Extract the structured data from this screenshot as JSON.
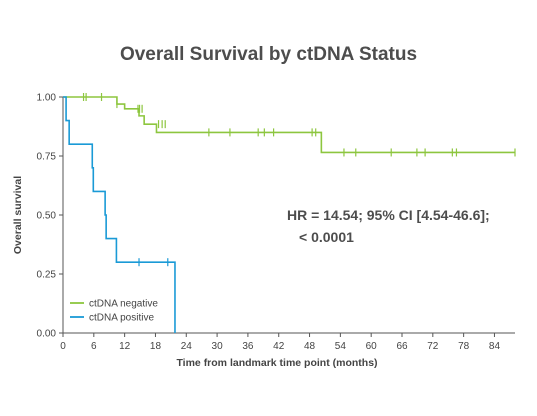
{
  "chart_data": {
    "type": "line",
    "step": true,
    "title": "Overall Survival by ctDNA Status",
    "xlabel": "Time from landmark time point (months)",
    "ylabel": "Overall survival",
    "xlim": [
      0,
      88
    ],
    "ylim": [
      0,
      1
    ],
    "xticks": [
      "0",
      "6",
      "12",
      "18",
      "24",
      "30",
      "36",
      "42",
      "48",
      "54",
      "60",
      "66",
      "72",
      "78",
      "84"
    ],
    "xtick_values": [
      0,
      6,
      12,
      18,
      24,
      30,
      36,
      42,
      48,
      54,
      60,
      66,
      72,
      78,
      84
    ],
    "yticks": [
      "0.00",
      "0.25",
      "0.50",
      "0.75",
      "1.00"
    ],
    "ytick_values": [
      0,
      0.25,
      0.5,
      0.75,
      1
    ],
    "legend_position": "bottom-left",
    "annotation": [
      "HR = 14.54; 95% CI [4.54-46.6];",
      "< 0.0001"
    ],
    "series": [
      {
        "name": "ctDNA negative",
        "color": "#8dc63f",
        "steps": [
          [
            0,
            1.0
          ],
          [
            10.5,
            0.97
          ],
          [
            12,
            0.95
          ],
          [
            14.8,
            0.92
          ],
          [
            15.8,
            0.885
          ],
          [
            18.2,
            0.85
          ],
          [
            50.3,
            0.765
          ],
          [
            88,
            0.765
          ]
        ],
        "censors": [
          [
            4,
            1.0
          ],
          [
            4.5,
            1.0
          ],
          [
            7.5,
            1.0
          ],
          [
            10.5,
            0.97
          ],
          [
            14.6,
            0.95
          ],
          [
            14.9,
            0.95
          ],
          [
            15.4,
            0.95
          ],
          [
            18.6,
            0.885
          ],
          [
            19.3,
            0.885
          ],
          [
            19.9,
            0.885
          ],
          [
            28.4,
            0.85
          ],
          [
            32.5,
            0.85
          ],
          [
            38,
            0.85
          ],
          [
            39.2,
            0.85
          ],
          [
            41,
            0.85
          ],
          [
            48.5,
            0.85
          ],
          [
            49.2,
            0.85
          ],
          [
            54.7,
            0.765
          ],
          [
            57,
            0.765
          ],
          [
            63.9,
            0.765
          ],
          [
            68.9,
            0.765
          ],
          [
            70.5,
            0.765
          ],
          [
            75.8,
            0.765
          ],
          [
            76.6,
            0.765
          ],
          [
            88,
            0.765
          ]
        ]
      },
      {
        "name": "ctDNA positive",
        "color": "#1a9ad6",
        "steps": [
          [
            0,
            1.0
          ],
          [
            0.6,
            0.9
          ],
          [
            1.2,
            0.8
          ],
          [
            5.7,
            0.7
          ],
          [
            5.9,
            0.6
          ],
          [
            8.2,
            0.5
          ],
          [
            8.4,
            0.4
          ],
          [
            10.4,
            0.3
          ],
          [
            21.8,
            0.0
          ]
        ],
        "censors": [
          [
            14.8,
            0.3
          ],
          [
            20.4,
            0.3
          ]
        ]
      }
    ]
  }
}
